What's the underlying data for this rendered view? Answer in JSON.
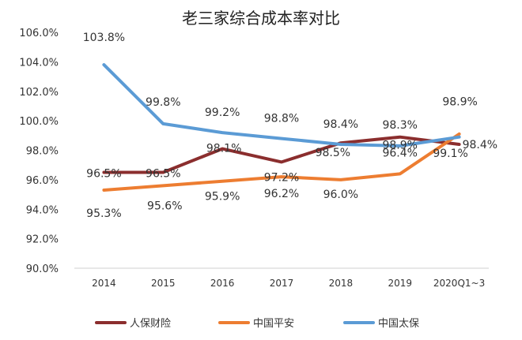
{
  "chart_data": {
    "type": "line",
    "title": "老三家综合成本率对比",
    "categories": [
      "2014",
      "2015",
      "2016",
      "2017",
      "2018",
      "2019",
      "2020Q1~3"
    ],
    "ylim": [
      90,
      106
    ],
    "yticks": [
      "90.0%",
      "92.0%",
      "94.0%",
      "96.0%",
      "98.0%",
      "100.0%",
      "102.0%",
      "104.0%",
      "106.0%"
    ],
    "grid": false,
    "legend": "bottom",
    "series": [
      {
        "name": "人保财险",
        "color": "#8B2E2E",
        "values": [
          96.5,
          96.5,
          98.1,
          97.2,
          98.5,
          98.9,
          98.4
        ],
        "labels": [
          "96.5%",
          "96.5%",
          "98.1%",
          "97.2%",
          "98.5%",
          "98.9%",
          "98.4%"
        ]
      },
      {
        "name": "中国平安",
        "color": "#ED7D31",
        "values": [
          95.3,
          95.6,
          95.9,
          96.2,
          96.0,
          96.4,
          99.1
        ],
        "labels": [
          "95.3%",
          "95.6%",
          "95.9%",
          "96.2%",
          "96.0%",
          "96.4%",
          "99.1%"
        ]
      },
      {
        "name": "中国太保",
        "color": "#5B9BD5",
        "values": [
          103.8,
          99.8,
          99.2,
          98.8,
          98.4,
          98.3,
          98.9
        ],
        "labels": [
          "103.8%",
          "99.8%",
          "99.2%",
          "98.8%",
          "98.4%",
          "98.3%",
          "98.9%"
        ]
      }
    ]
  }
}
